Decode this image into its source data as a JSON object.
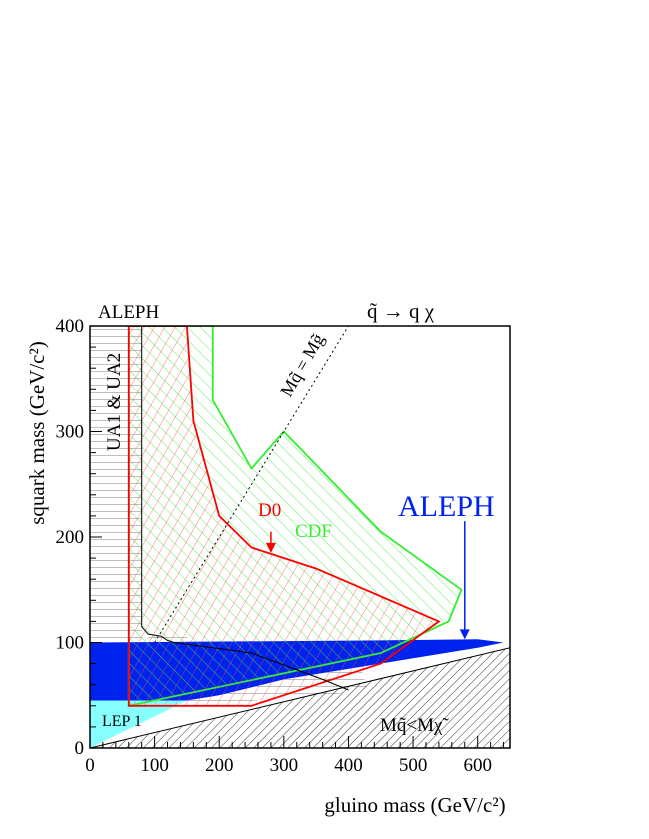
{
  "chart_data": {
    "type": "area",
    "title_left": "ALEPH",
    "title_right": "q̃ → q χ",
    "xlabel": "gluino mass (GeV/c²)",
    "ylabel": "squark mass (GeV/c²)",
    "xlim": [
      0,
      650
    ],
    "ylim": [
      0,
      400
    ],
    "x_ticks": [
      0,
      100,
      200,
      300,
      400,
      500,
      600
    ],
    "y_ticks": [
      0,
      100,
      200,
      300,
      400
    ],
    "grid": false,
    "colors": {
      "aleph": "#0022ee",
      "cdf": "#33ee33",
      "d0": "#ff0000",
      "lep1": "#88ffff",
      "ua": "#000000",
      "axis": "#000000"
    },
    "regions": {
      "ua": {
        "label": "UA1 & UA2",
        "points": [
          [
            0,
            400
          ],
          [
            0,
            40
          ],
          [
            60,
            40
          ],
          [
            60,
            100
          ],
          [
            90,
            105
          ],
          [
            120,
            110
          ],
          [
            150,
            105
          ],
          [
            250,
            100
          ],
          [
            350,
            90
          ],
          [
            420,
            75
          ],
          [
            430,
            55
          ],
          [
            360,
            50
          ],
          [
            250,
            45
          ],
          [
            150,
            42
          ],
          [
            80,
            40
          ],
          [
            80,
            400
          ]
        ]
      },
      "ua_line": [
        [
          80,
          400
        ],
        [
          80,
          115
        ],
        [
          90,
          108
        ],
        [
          110,
          106
        ],
        [
          120,
          102
        ],
        [
          130,
          100
        ],
        [
          250,
          90
        ],
        [
          360,
          65
        ],
        [
          400,
          55
        ]
      ],
      "cdf": {
        "label": "CDF",
        "points": [
          [
            60,
            40
          ],
          [
            60,
            400
          ],
          [
            190,
            400
          ],
          [
            190,
            330
          ],
          [
            250,
            265
          ],
          [
            300,
            300
          ],
          [
            450,
            205
          ],
          [
            575,
            150
          ],
          [
            555,
            120
          ],
          [
            450,
            90
          ],
          [
            60,
            40
          ]
        ]
      },
      "d0": {
        "label": "D0",
        "points": [
          [
            60,
            400
          ],
          [
            60,
            40
          ],
          [
            250,
            40
          ],
          [
            450,
            80
          ],
          [
            540,
            120
          ],
          [
            350,
            170
          ],
          [
            250,
            190
          ],
          [
            200,
            220
          ],
          [
            160,
            310
          ],
          [
            150,
            400
          ]
        ]
      },
      "aleph": {
        "label": "ALEPH",
        "points": [
          [
            0,
            45
          ],
          [
            0,
            100
          ],
          [
            450,
            102
          ],
          [
            600,
            103
          ],
          [
            640,
            100
          ],
          [
            600,
            95
          ],
          [
            500,
            85
          ],
          [
            300,
            65
          ],
          [
            200,
            50
          ],
          [
            150,
            45
          ]
        ]
      },
      "lep1": {
        "label": "LEP 1",
        "points": [
          [
            0,
            0
          ],
          [
            0,
            45
          ],
          [
            150,
            45
          ]
        ]
      },
      "excluded_label": "Mq̃<Mχ̃",
      "diagonal_label": "Mq̃ = Mg̃"
    },
    "annotations": {
      "d0_arrow": {
        "from": [
          280,
          205
        ],
        "to": [
          280,
          185
        ]
      },
      "aleph_arrow": {
        "from": [
          580,
          215
        ],
        "to": [
          580,
          103
        ]
      }
    }
  }
}
